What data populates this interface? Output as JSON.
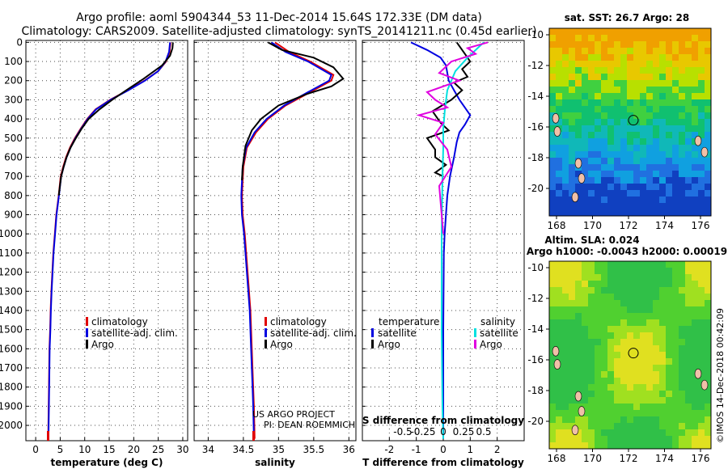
{
  "header": {
    "title_line1": "Argo profile: aoml 5904344_53 11-Dec-2014 15.64S 172.33E (DM data)",
    "title_line2": "Climatology: CARS2009. Satellite-adjusted climatology: synTS_20141211.nc (0.45d earlier)"
  },
  "colors": {
    "climatology": "#e00000",
    "satellite": "#0000e0",
    "argo": "#000000",
    "argo_salinity_diff": "#e000e0",
    "satellite_salinity_diff": "#00e0e0"
  },
  "depth_ticks": [
    "0",
    "100",
    "200",
    "300",
    "400",
    "500",
    "600",
    "700",
    "800",
    "900",
    "1000",
    "1100",
    "1200",
    "1300",
    "1400",
    "1500",
    "1600",
    "1700",
    "1800",
    "1900",
    "2000"
  ],
  "panels": {
    "temperature": {
      "xlabel": "temperature (deg C)",
      "xticks": [
        "0",
        "5",
        "10",
        "15",
        "20",
        "25",
        "30"
      ],
      "legend": [
        "climatology",
        "satellite-adj. clim.",
        "Argo"
      ]
    },
    "salinity": {
      "xlabel": "salinity",
      "xticks": [
        "34",
        "34.5",
        "35",
        "35.5",
        "36"
      ],
      "legend": [
        "climatology",
        "satellite-adj. clim.",
        "Argo"
      ],
      "credit1": "US ARGO PROJECT",
      "credit2": "PI: DEAN ROEMMICH"
    },
    "difference": {
      "xlabel": "T difference from climatology",
      "xticks": [
        "-2",
        "-1",
        "0",
        "1",
        "2"
      ],
      "s_label": "S difference from climatology",
      "s_ticks": [
        "-0.5",
        "-0.25",
        "0",
        "0.25",
        "0.5"
      ],
      "legend_t_head": "temperature",
      "legend_s_head": "salinity",
      "legend_satellite": "satellite",
      "legend_argo": "Argo"
    }
  },
  "maps": {
    "sst_title": "sat. SST: 26.7 Argo: 28",
    "sla_title1": "Altim. SLA: 0.024",
    "sla_title2": "Argo h1000: -0.0043 h2000: 0.00019",
    "lon_ticks": [
      "168",
      "170",
      "172",
      "174",
      "176"
    ],
    "lat_ticks": [
      "-10",
      "-12",
      "-14",
      "-16",
      "-18",
      "-20"
    ],
    "stamp": "©IMOS 14-Dec-2018 00:42:09"
  },
  "chart_data": [
    {
      "type": "line",
      "panel": "temperature",
      "xlabel": "temperature (deg C)",
      "ylabel": "",
      "xlim": [
        -2,
        31
      ],
      "ylim": [
        2080,
        -10
      ],
      "series": [
        {
          "name": "climatology",
          "x": [
            27.5,
            27.3,
            26.6,
            25.0,
            22.2,
            18.8,
            15.2,
            12.2,
            10.5,
            9.2,
            8.0,
            7.0,
            6.2,
            5.6,
            5.1,
            4.7,
            4.2,
            3.9,
            3.6,
            3.4,
            3.2,
            3.05,
            2.95,
            2.8,
            2.7,
            2.55
          ],
          "y": [
            0,
            50,
            100,
            150,
            200,
            250,
            300,
            350,
            400,
            450,
            500,
            550,
            600,
            650,
            700,
            800,
            900,
            1000,
            1100,
            1200,
            1300,
            1400,
            1500,
            1600,
            1800,
            2070
          ]
        },
        {
          "name": "satellite-adj. clim.",
          "x": [
            27.4,
            27.2,
            26.5,
            25.0,
            22.3,
            18.9,
            15.3,
            12.3,
            10.6,
            9.3,
            8.1,
            7.1,
            6.3,
            5.7,
            5.2,
            4.75,
            4.25,
            3.95,
            3.65,
            3.45,
            3.25,
            3.1,
            3.0,
            2.85,
            2.75,
            2.6
          ],
          "y": [
            0,
            50,
            100,
            150,
            200,
            250,
            300,
            350,
            400,
            450,
            500,
            550,
            600,
            650,
            700,
            800,
            900,
            1000,
            1100,
            1200,
            1300,
            1400,
            1500,
            1600,
            1800,
            2070
          ]
        },
        {
          "name": "Argo",
          "x": [
            28.0,
            27.9,
            27.4,
            25.8,
            22.0,
            18.5,
            15.6,
            13.0,
            10.8,
            9.4,
            8.2,
            7.1,
            6.3,
            5.7,
            5.2,
            4.7
          ],
          "y": [
            0,
            30,
            70,
            120,
            190,
            250,
            300,
            350,
            400,
            450,
            500,
            550,
            600,
            650,
            700,
            800
          ]
        }
      ]
    },
    {
      "type": "line",
      "panel": "salinity",
      "xlabel": "salinity",
      "ylabel": "",
      "xlim": [
        33.8,
        36.1
      ],
      "ylim": [
        2080,
        -10
      ],
      "series": [
        {
          "name": "climatology",
          "x": [
            34.95,
            35.15,
            35.45,
            35.78,
            35.75,
            35.45,
            35.1,
            34.85,
            34.68,
            34.55,
            34.5,
            34.48,
            34.49,
            34.52,
            34.56,
            34.6,
            34.62,
            34.64,
            34.65,
            34.66
          ],
          "y": [
            0,
            50,
            100,
            170,
            200,
            260,
            330,
            400,
            470,
            550,
            650,
            800,
            900,
            1000,
            1200,
            1400,
            1600,
            1800,
            1900,
            2070
          ]
        },
        {
          "name": "satellite-adj. clim.",
          "x": [
            34.9,
            35.1,
            35.42,
            35.75,
            35.72,
            35.42,
            35.08,
            34.83,
            34.66,
            34.54,
            34.49,
            34.47,
            34.48,
            34.51,
            34.55,
            34.59,
            34.61,
            34.63,
            34.64,
            34.65
          ],
          "y": [
            0,
            50,
            100,
            170,
            200,
            260,
            330,
            400,
            470,
            550,
            650,
            800,
            900,
            1000,
            1200,
            1400,
            1600,
            1800,
            1900,
            2070
          ]
        },
        {
          "name": "Argo",
          "x": [
            34.85,
            35.05,
            35.5,
            35.78,
            35.92,
            35.75,
            35.4,
            35.0,
            34.75,
            34.62,
            34.53,
            34.49,
            34.48
          ],
          "y": [
            0,
            40,
            80,
            130,
            190,
            230,
            270,
            330,
            400,
            460,
            540,
            650,
            720
          ]
        }
      ]
    },
    {
      "type": "line",
      "panel": "difference",
      "xlabel": "T difference from climatology",
      "ylabel": "",
      "xlim": [
        -3,
        3
      ],
      "ylim": [
        2080,
        -10
      ],
      "s_ticks": [
        -0.5,
        -0.25,
        0,
        0.25,
        0.5
      ],
      "series": [
        {
          "name": "temperature satellite",
          "x": [
            -1.2,
            -0.6,
            -0.1,
            0.1,
            0.2,
            0.4,
            0.6,
            0.8,
            1.0,
            0.8,
            0.6,
            0.5,
            0.4,
            0.25,
            0.15,
            0.1,
            0.05,
            0.02,
            0.0,
            0.0
          ],
          "y": [
            0,
            40,
            80,
            120,
            200,
            250,
            300,
            340,
            380,
            430,
            470,
            520,
            600,
            700,
            800,
            900,
            1000,
            1100,
            1500,
            2070
          ]
        },
        {
          "name": "temperature Argo",
          "x": [
            0.5,
            0.8,
            1.0,
            0.7,
            0.9,
            0.4,
            0.7,
            0.3,
            -0.4,
            -0.1,
            0.2,
            -0.6,
            -0.3,
            -0.3,
            0.1,
            -0.3,
            0.0
          ],
          "y": [
            0,
            60,
            100,
            140,
            180,
            210,
            250,
            300,
            360,
            420,
            460,
            500,
            560,
            600,
            640,
            680,
            700
          ]
        },
        {
          "name": "salinity satellite",
          "x": [
            0.5,
            0.3,
            0.15,
            0.05,
            0.02,
            0.0,
            0.0,
            -0.01,
            -0.02,
            -0.02,
            -0.01,
            0.0
          ],
          "y": [
            0,
            80,
            150,
            250,
            350,
            450,
            550,
            700,
            1000,
            1500,
            1900,
            2070
          ]
        },
        {
          "name": "salinity Argo",
          "x": [
            0.55,
            0.3,
            0.4,
            0.1,
            -0.05,
            0.2,
            -0.2,
            -0.1,
            0.05,
            -0.3,
            0.0,
            -0.1,
            0.05,
            0.1,
            -0.05,
            0.0
          ],
          "y": [
            0,
            30,
            60,
            100,
            160,
            200,
            260,
            300,
            340,
            380,
            420,
            480,
            560,
            650,
            750,
            1000
          ]
        }
      ]
    }
  ]
}
